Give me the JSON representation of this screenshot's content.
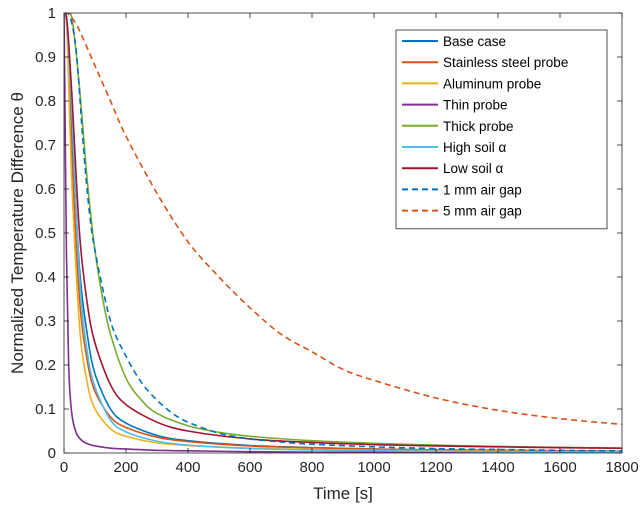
{
  "chart_data": {
    "type": "line",
    "xlabel": "Time [s]",
    "ylabel": "Normalized Temperature Difference θ",
    "xlim": [
      0,
      1800
    ],
    "ylim": [
      0,
      1
    ],
    "xticks": [
      0,
      200,
      400,
      600,
      800,
      1000,
      1200,
      1400,
      1600,
      1800
    ],
    "yticks": [
      0,
      0.1,
      0.2,
      0.3,
      0.4,
      0.5,
      0.6,
      0.7,
      0.8,
      0.9,
      1
    ],
    "grid": false,
    "legend_position": "top-right",
    "series": [
      {
        "name": "Base case",
        "color": "#0072BD",
        "style": "solid",
        "x": [
          0,
          10,
          25,
          50,
          75,
          100,
          150,
          200,
          300,
          400,
          600,
          800,
          1000,
          1200,
          1400,
          1600,
          1800
        ],
        "y": [
          1,
          0.97,
          0.75,
          0.42,
          0.27,
          0.18,
          0.1,
          0.068,
          0.04,
          0.028,
          0.017,
          0.012,
          0.009,
          0.007,
          0.006,
          0.005,
          0.004
        ]
      },
      {
        "name": "Stainless steel probe",
        "color": "#D95319",
        "style": "solid",
        "x": [
          0,
          10,
          25,
          50,
          75,
          100,
          150,
          200,
          300,
          400,
          600,
          800,
          1000,
          1200,
          1400,
          1600,
          1800
        ],
        "y": [
          1,
          0.96,
          0.68,
          0.35,
          0.21,
          0.14,
          0.082,
          0.058,
          0.036,
          0.026,
          0.016,
          0.012,
          0.009,
          0.007,
          0.006,
          0.005,
          0.004
        ]
      },
      {
        "name": "Aluminum probe",
        "color": "#EDB120",
        "style": "solid",
        "x": [
          0,
          10,
          25,
          50,
          75,
          100,
          150,
          200,
          300,
          400,
          600,
          800,
          1000,
          1200,
          1400,
          1600,
          1800
        ],
        "y": [
          1,
          0.95,
          0.62,
          0.29,
          0.16,
          0.1,
          0.055,
          0.038,
          0.023,
          0.017,
          0.011,
          0.008,
          0.006,
          0.005,
          0.004,
          0.003,
          0.003
        ]
      },
      {
        "name": "Thin probe",
        "color": "#7E2F8E",
        "style": "solid",
        "x": [
          0,
          3,
          8,
          15,
          25,
          40,
          60,
          80,
          100,
          150,
          200,
          300,
          400,
          600,
          800,
          1000,
          1400,
          1800
        ],
        "y": [
          1,
          0.8,
          0.45,
          0.2,
          0.09,
          0.045,
          0.027,
          0.02,
          0.016,
          0.011,
          0.009,
          0.006,
          0.005,
          0.003,
          0.002,
          0.002,
          0.001,
          0.001
        ]
      },
      {
        "name": "Thick probe",
        "color": "#77AC30",
        "style": "solid",
        "x": [
          0,
          25,
          50,
          75,
          100,
          125,
          150,
          200,
          250,
          300,
          400,
          500,
          600,
          800,
          1000,
          1200,
          1400,
          1600,
          1800
        ],
        "y": [
          1,
          0.99,
          0.83,
          0.62,
          0.46,
          0.35,
          0.27,
          0.17,
          0.12,
          0.09,
          0.062,
          0.047,
          0.038,
          0.028,
          0.022,
          0.018,
          0.015,
          0.013,
          0.011
        ]
      },
      {
        "name": "High soil α",
        "color": "#4DBEEE",
        "style": "solid",
        "x": [
          0,
          10,
          25,
          50,
          75,
          100,
          150,
          200,
          300,
          400,
          600,
          800,
          1000,
          1200,
          1400,
          1600,
          1800
        ],
        "y": [
          1,
          0.97,
          0.78,
          0.4,
          0.23,
          0.15,
          0.075,
          0.048,
          0.027,
          0.018,
          0.01,
          0.007,
          0.005,
          0.004,
          0.003,
          0.003,
          0.002
        ]
      },
      {
        "name": "Low soil α",
        "color": "#A2142F",
        "style": "solid",
        "x": [
          0,
          10,
          25,
          50,
          75,
          100,
          150,
          200,
          300,
          400,
          600,
          800,
          1000,
          1200,
          1400,
          1600,
          1800
        ],
        "y": [
          1,
          0.98,
          0.82,
          0.5,
          0.34,
          0.25,
          0.155,
          0.11,
          0.07,
          0.05,
          0.032,
          0.024,
          0.019,
          0.016,
          0.014,
          0.012,
          0.011
        ]
      },
      {
        "name": "1 mm air gap",
        "color": "#0072BD",
        "style": "dashed",
        "x": [
          0,
          20,
          40,
          60,
          80,
          100,
          150,
          200,
          250,
          300,
          350,
          400,
          500,
          600,
          700,
          800,
          1000,
          1200,
          1400,
          1600,
          1800
        ],
        "y": [
          1,
          0.99,
          0.91,
          0.72,
          0.56,
          0.46,
          0.3,
          0.22,
          0.16,
          0.12,
          0.09,
          0.07,
          0.045,
          0.032,
          0.025,
          0.02,
          0.014,
          0.01,
          0.008,
          0.006,
          0.005
        ]
      },
      {
        "name": "5 mm air gap",
        "color": "#D95319",
        "style": "dashed",
        "x": [
          0,
          10,
          25,
          50,
          100,
          150,
          200,
          300,
          400,
          500,
          600,
          700,
          800,
          900,
          1000,
          1200,
          1400,
          1600,
          1800
        ],
        "y": [
          1,
          1,
          0.99,
          0.96,
          0.88,
          0.8,
          0.72,
          0.59,
          0.48,
          0.4,
          0.33,
          0.27,
          0.23,
          0.19,
          0.165,
          0.125,
          0.097,
          0.078,
          0.065
        ]
      }
    ]
  }
}
